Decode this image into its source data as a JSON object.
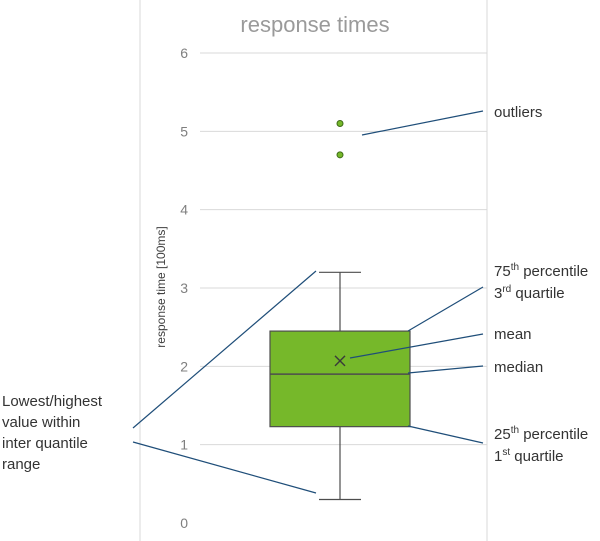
{
  "chart_data": {
    "type": "box",
    "title": "response times",
    "ylabel": "response time [100ms]",
    "ylim": [
      0,
      6
    ],
    "yticks": [
      0,
      1,
      2,
      3,
      4,
      5,
      6
    ],
    "grid": true,
    "box": {
      "whisker_low": 0.3,
      "q1": 1.23,
      "median": 1.9,
      "mean": 2.07,
      "q3": 2.45,
      "whisker_high": 3.2,
      "outliers": [
        4.7,
        5.1
      ]
    },
    "colors": {
      "box_fill": "#76b82a",
      "box_stroke": "#4d4d4d",
      "outlier_fill": "#76b82a",
      "grid": "#d9d9d9",
      "annotation_line": "#1f4e79"
    }
  },
  "annotations": {
    "outliers": "outliers",
    "q3_line1_pre": "75",
    "q3_line1_sup": "th",
    "q3_line1_post": " percentile",
    "q3_line2_pre": "3",
    "q3_line2_sup": "rd",
    "q3_line2_post": " quartile",
    "mean": "mean",
    "median": "median",
    "q1_line1_pre": "25",
    "q1_line1_sup": "th",
    "q1_line1_post": " percentile",
    "q1_line2_pre": "1",
    "q1_line2_sup": "st",
    "q1_line2_post": " quartile",
    "whisker_line1": "Lowest/highest",
    "whisker_line2": "value within",
    "whisker_line3": "inter quantile",
    "whisker_line4": "range"
  }
}
